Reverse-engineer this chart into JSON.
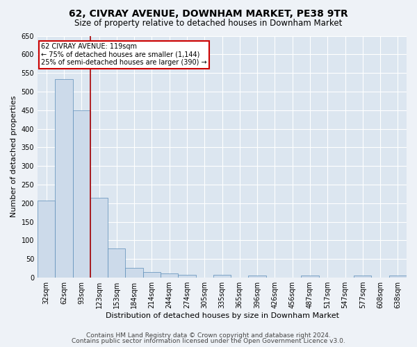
{
  "title": "62, CIVRAY AVENUE, DOWNHAM MARKET, PE38 9TR",
  "subtitle": "Size of property relative to detached houses in Downham Market",
  "xlabel": "Distribution of detached houses by size in Downham Market",
  "ylabel": "Number of detached properties",
  "categories": [
    "32sqm",
    "62sqm",
    "93sqm",
    "123sqm",
    "153sqm",
    "184sqm",
    "214sqm",
    "244sqm",
    "274sqm",
    "305sqm",
    "335sqm",
    "365sqm",
    "396sqm",
    "426sqm",
    "456sqm",
    "487sqm",
    "517sqm",
    "547sqm",
    "577sqm",
    "608sqm",
    "638sqm"
  ],
  "values": [
    208,
    533,
    450,
    215,
    79,
    26,
    16,
    11,
    8,
    0,
    7,
    0,
    6,
    0,
    0,
    5,
    0,
    0,
    6,
    0,
    5
  ],
  "bar_color": "#ccdaea",
  "bar_edge_color": "#5b8db8",
  "vline_color": "#aa0000",
  "annotation_text": "62 CIVRAY AVENUE: 119sqm\n← 75% of detached houses are smaller (1,144)\n25% of semi-detached houses are larger (390) →",
  "annotation_box_color": "#ffffff",
  "annotation_box_edge": "#cc0000",
  "ylim": [
    0,
    650
  ],
  "footer1": "Contains HM Land Registry data © Crown copyright and database right 2024.",
  "footer2": "Contains public sector information licensed under the Open Government Licence v3.0.",
  "bg_color": "#eef2f7",
  "plot_bg_color": "#dce6f0",
  "grid_color": "#ffffff",
  "title_fontsize": 10,
  "subtitle_fontsize": 8.5,
  "label_fontsize": 8,
  "tick_fontsize": 7,
  "footer_fontsize": 6.5
}
